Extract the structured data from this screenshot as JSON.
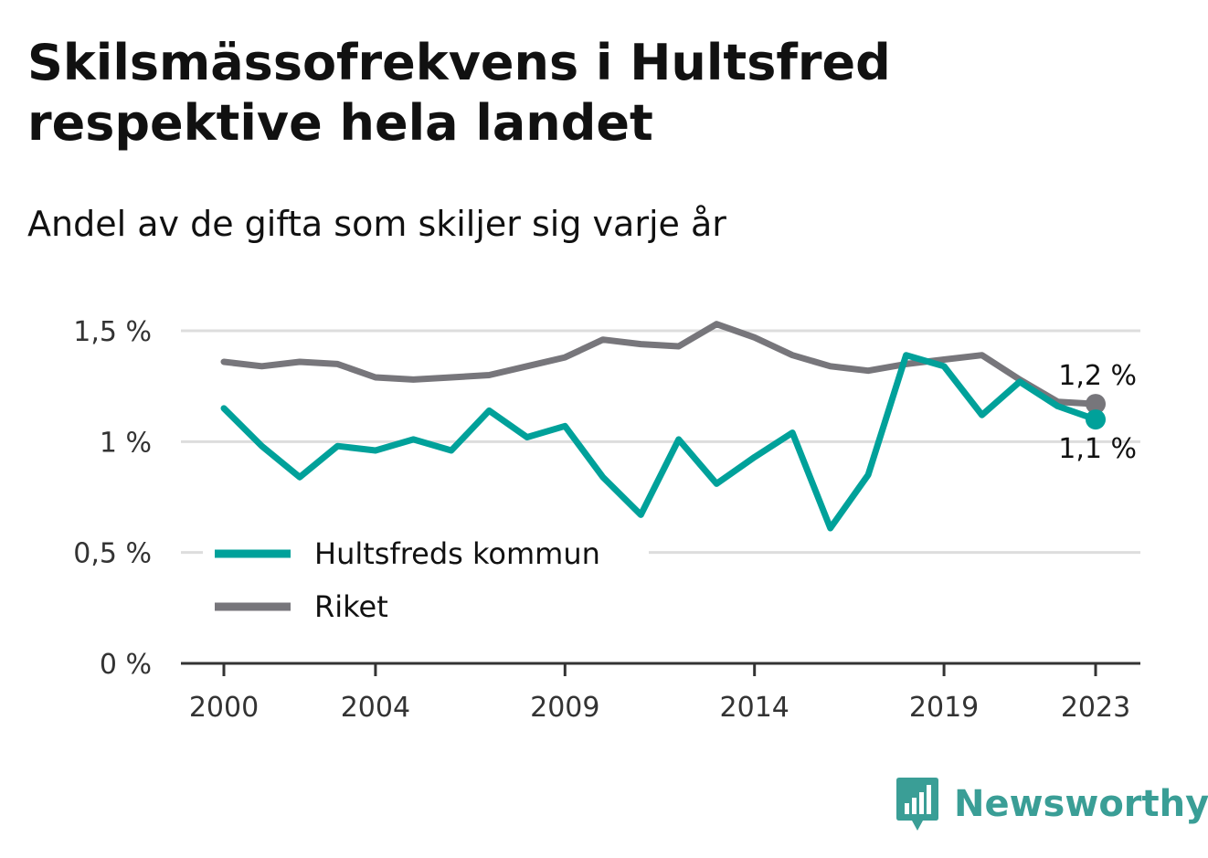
{
  "title": "Skilsmässofrekvens i Hultsfred respektive hela landet",
  "subtitle": "Andel av de gifta som skiljer sig varje år",
  "brand": "Newsworthy",
  "colors": {
    "hultsfred": "#00a19a",
    "riket": "#77767b",
    "grid": "#dddddd",
    "axis": "#333333",
    "brand": "#3a9e96"
  },
  "chart_data": {
    "type": "line",
    "x": [
      2000,
      2001,
      2002,
      2003,
      2004,
      2005,
      2006,
      2007,
      2008,
      2009,
      2010,
      2011,
      2012,
      2013,
      2014,
      2015,
      2016,
      2017,
      2018,
      2019,
      2020,
      2021,
      2022,
      2023
    ],
    "x_tick_values": [
      2000,
      2004,
      2009,
      2014,
      2019,
      2023
    ],
    "x_tick_labels": [
      "2000",
      "2004",
      "2009",
      "2014",
      "2019",
      "2023"
    ],
    "y_tick_values": [
      0,
      0.5,
      1,
      1.5
    ],
    "y_tick_labels": [
      "0 %",
      "0,5 %",
      "1 %",
      "1,5 %"
    ],
    "ylim": [
      0,
      1.5
    ],
    "xlim": [
      1999,
      2024
    ],
    "grid": true,
    "legend_position": "bottom-left",
    "series": [
      {
        "name": "Hultsfreds kommun",
        "color": "#00a19a",
        "values": [
          1.15,
          0.98,
          0.84,
          0.98,
          0.96,
          1.01,
          0.96,
          1.14,
          1.02,
          1.07,
          0.84,
          0.67,
          1.01,
          0.81,
          0.93,
          1.04,
          0.61,
          0.85,
          1.39,
          1.34,
          1.12,
          1.27,
          1.16,
          1.1
        ],
        "end_label": "1,1 %"
      },
      {
        "name": "Riket",
        "color": "#77767b",
        "values": [
          1.36,
          1.34,
          1.36,
          1.35,
          1.29,
          1.28,
          1.29,
          1.3,
          1.34,
          1.38,
          1.46,
          1.44,
          1.43,
          1.53,
          1.47,
          1.39,
          1.34,
          1.32,
          1.35,
          1.37,
          1.39,
          1.28,
          1.18,
          1.17
        ],
        "end_label": "1,2 %"
      }
    ]
  }
}
